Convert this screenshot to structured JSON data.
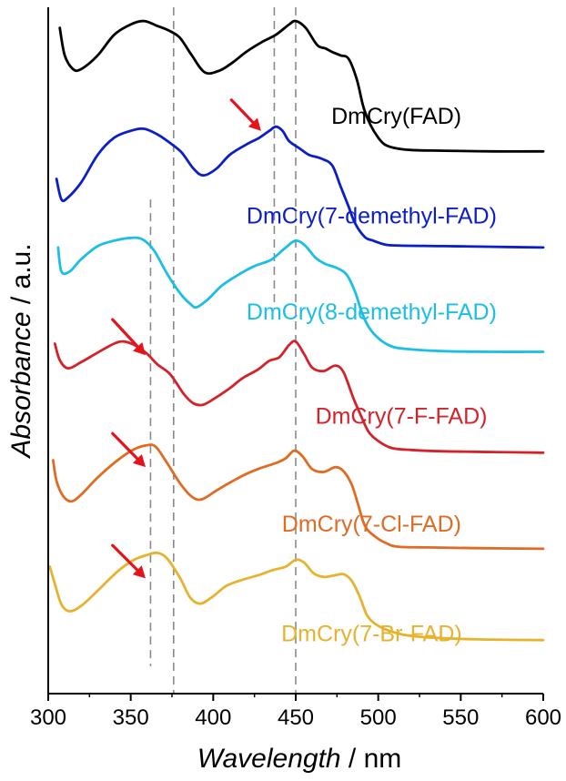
{
  "chart_data": {
    "type": "line",
    "title": "",
    "xlabel_italic": "Wavelength",
    "xlabel_unit": " / nm",
    "ylabel_italic": "Absorbance",
    "ylabel_unit": " / a.u.",
    "xlim": [
      300,
      600
    ],
    "ylim": [
      0,
      100
    ],
    "x_ticks": [
      300,
      350,
      400,
      450,
      500,
      550,
      600
    ],
    "x_tick_labels": [
      "300",
      "350",
      "400",
      "450",
      "500",
      "550",
      "600"
    ],
    "y_ticks_shown": false,
    "legend": "inline labels",
    "stacked_offset_spectra": true,
    "reference_lines_nm": [
      {
        "x": 376,
        "y_range": [
          0,
          100
        ]
      },
      {
        "x": 437,
        "y_range": [
          56,
          100
        ]
      },
      {
        "x": 450,
        "y_range": [
          0,
          100
        ]
      },
      {
        "x": 362,
        "y_range": [
          4,
          72
        ]
      }
    ],
    "arrows": [
      {
        "name": "arrow-7-demethyl",
        "from": [
          411,
          86.5
        ],
        "to": [
          429,
          82
        ]
      },
      {
        "name": "arrow-7-f",
        "from": [
          339,
          54.5
        ],
        "to": [
          359,
          49.3
        ]
      },
      {
        "name": "arrow-7-cl",
        "from": [
          339,
          37.9
        ],
        "to": [
          359,
          33
        ]
      },
      {
        "name": "arrow-7-br",
        "from": [
          339,
          21.6
        ],
        "to": [
          359,
          16.8
        ]
      }
    ],
    "series": [
      {
        "name": "DmCry(FAD)",
        "color": "#000000",
        "label_at": [
          511,
          83
        ],
        "points": [
          [
            307,
            97
          ],
          [
            310,
            93
          ],
          [
            315,
            91
          ],
          [
            320,
            91
          ],
          [
            330,
            93
          ],
          [
            340,
            96
          ],
          [
            350,
            97.5
          ],
          [
            358,
            98
          ],
          [
            366,
            97.3
          ],
          [
            374,
            96.5
          ],
          [
            380,
            95.5
          ],
          [
            387,
            93
          ],
          [
            395,
            90.5
          ],
          [
            404,
            90.8
          ],
          [
            412,
            92
          ],
          [
            420,
            93.5
          ],
          [
            430,
            95
          ],
          [
            438,
            96
          ],
          [
            446,
            97.5
          ],
          [
            450,
            98
          ],
          [
            456,
            97
          ],
          [
            463,
            94.5
          ],
          [
            468,
            94
          ],
          [
            472,
            93.5
          ],
          [
            477,
            93
          ],
          [
            482,
            92.5
          ],
          [
            487,
            89.5
          ],
          [
            491,
            85.5
          ],
          [
            495,
            83
          ],
          [
            500,
            81
          ],
          [
            504,
            80
          ],
          [
            510,
            79.5
          ],
          [
            520,
            79.2
          ],
          [
            540,
            79.1
          ],
          [
            570,
            79
          ],
          [
            600,
            79
          ]
        ]
      },
      {
        "name": "DmCry(7-demethyl-FAD)",
        "color": "#0b1ec7",
        "label_at": [
          496,
          68.5
        ],
        "points": [
          [
            305,
            75
          ],
          [
            308,
            72
          ],
          [
            312,
            72.3
          ],
          [
            320,
            74.5
          ],
          [
            330,
            78.5
          ],
          [
            340,
            81
          ],
          [
            350,
            82
          ],
          [
            358,
            82.3
          ],
          [
            366,
            81.5
          ],
          [
            374,
            80.2
          ],
          [
            381,
            78.8
          ],
          [
            388,
            76.5
          ],
          [
            394,
            75.5
          ],
          [
            402,
            76.5
          ],
          [
            410,
            78.5
          ],
          [
            420,
            80
          ],
          [
            428,
            81
          ],
          [
            434,
            82
          ],
          [
            438,
            82.6
          ],
          [
            442,
            82
          ],
          [
            446,
            80.5
          ],
          [
            452,
            79.5
          ],
          [
            458,
            78.5
          ],
          [
            465,
            78
          ],
          [
            472,
            77
          ],
          [
            477,
            74
          ],
          [
            482,
            71
          ],
          [
            486,
            68.5
          ],
          [
            492,
            66.5
          ],
          [
            497,
            66
          ],
          [
            503,
            65.5
          ],
          [
            510,
            65.3
          ],
          [
            540,
            65.2
          ],
          [
            570,
            65.1
          ],
          [
            600,
            65
          ]
        ]
      },
      {
        "name": "DmCry(8-demethyl-FAD)",
        "color": "#1bbfe4",
        "label_at": [
          496,
          54.5
        ],
        "points": [
          [
            306,
            65
          ],
          [
            308,
            61.5
          ],
          [
            313,
            61.5
          ],
          [
            320,
            63.3
          ],
          [
            330,
            65.2
          ],
          [
            340,
            66
          ],
          [
            350,
            66.4
          ],
          [
            357,
            66.2
          ],
          [
            364,
            64.6
          ],
          [
            372,
            61.2
          ],
          [
            380,
            58.3
          ],
          [
            386,
            56.8
          ],
          [
            390,
            56.3
          ],
          [
            397,
            57.5
          ],
          [
            405,
            59.4
          ],
          [
            415,
            61
          ],
          [
            425,
            62.3
          ],
          [
            435,
            63.2
          ],
          [
            443,
            64.8
          ],
          [
            450,
            66
          ],
          [
            456,
            65.2
          ],
          [
            462,
            63.5
          ],
          [
            468,
            62.6
          ],
          [
            475,
            62
          ],
          [
            481,
            61
          ],
          [
            486,
            58.5
          ],
          [
            490,
            55.6
          ],
          [
            494,
            53.5
          ],
          [
            500,
            51.8
          ],
          [
            508,
            50.6
          ],
          [
            518,
            50.2
          ],
          [
            540,
            49.9
          ],
          [
            570,
            49.8
          ],
          [
            600,
            49.8
          ]
        ]
      },
      {
        "name": "DmCry(7-F-FAD)",
        "color": "#d4222a",
        "label_at": [
          514,
          39.3
        ],
        "points": [
          [
            304,
            51
          ],
          [
            307,
            48.6
          ],
          [
            312,
            47.4
          ],
          [
            320,
            48.3
          ],
          [
            330,
            49.7
          ],
          [
            340,
            51
          ],
          [
            346,
            51.3
          ],
          [
            353,
            50.7
          ],
          [
            360,
            49.5
          ],
          [
            366,
            48
          ],
          [
            374,
            46.5
          ],
          [
            382,
            43.7
          ],
          [
            388,
            42.3
          ],
          [
            394,
            42.1
          ],
          [
            402,
            43.2
          ],
          [
            410,
            44.5
          ],
          [
            418,
            46
          ],
          [
            427,
            47.2
          ],
          [
            434,
            48.5
          ],
          [
            440,
            49
          ],
          [
            446,
            50.8
          ],
          [
            450,
            51.3
          ],
          [
            455,
            49.5
          ],
          [
            460,
            47.5
          ],
          [
            467,
            47
          ],
          [
            474,
            47.8
          ],
          [
            479,
            46.8
          ],
          [
            485,
            43
          ],
          [
            489,
            40.8
          ],
          [
            494,
            38.2
          ],
          [
            500,
            36.8
          ],
          [
            508,
            35.8
          ],
          [
            520,
            35.5
          ],
          [
            540,
            35.3
          ],
          [
            570,
            35.2
          ],
          [
            600,
            35.1
          ]
        ]
      },
      {
        "name": "DmCry(7-Cl-FAD)",
        "color": "#e06b24",
        "label_at": [
          496,
          23.6
        ],
        "points": [
          [
            303,
            34
          ],
          [
            305,
            31
          ],
          [
            309,
            28.8
          ],
          [
            314,
            28
          ],
          [
            320,
            29
          ],
          [
            330,
            31.5
          ],
          [
            342,
            34
          ],
          [
            352,
            35.6
          ],
          [
            360,
            36.2
          ],
          [
            365,
            36
          ],
          [
            371,
            34
          ],
          [
            380,
            30.6
          ],
          [
            387,
            28.7
          ],
          [
            393,
            28.3
          ],
          [
            402,
            29.6
          ],
          [
            412,
            31
          ],
          [
            420,
            32
          ],
          [
            428,
            32.8
          ],
          [
            438,
            33.6
          ],
          [
            444,
            34.3
          ],
          [
            449,
            35.4
          ],
          [
            454,
            34.6
          ],
          [
            460,
            32.7
          ],
          [
            467,
            32.3
          ],
          [
            474,
            33
          ],
          [
            479,
            32.4
          ],
          [
            484,
            30.4
          ],
          [
            488,
            27.4
          ],
          [
            492,
            24.4
          ],
          [
            498,
            22.9
          ],
          [
            505,
            21.9
          ],
          [
            512,
            21.4
          ],
          [
            530,
            21.3
          ],
          [
            560,
            21.2
          ],
          [
            600,
            21.1
          ]
        ]
      },
      {
        "name": "DmCry(7-Br-FAD)",
        "color": "#e6b32e",
        "label_at": [
          496,
          7.6
        ],
        "points": [
          [
            301,
            18.5
          ],
          [
            304,
            16
          ],
          [
            308,
            13
          ],
          [
            313,
            12
          ],
          [
            320,
            12.8
          ],
          [
            330,
            15
          ],
          [
            342,
            17.8
          ],
          [
            352,
            19.5
          ],
          [
            360,
            20.2
          ],
          [
            366,
            20.5
          ],
          [
            372,
            19.7
          ],
          [
            380,
            16.8
          ],
          [
            386,
            14
          ],
          [
            392,
            13.1
          ],
          [
            399,
            14
          ],
          [
            408,
            15.7
          ],
          [
            418,
            16.6
          ],
          [
            428,
            17.3
          ],
          [
            436,
            18
          ],
          [
            444,
            18.5
          ],
          [
            450,
            19.5
          ],
          [
            455,
            19.1
          ],
          [
            461,
            17.5
          ],
          [
            467,
            17
          ],
          [
            473,
            17.2
          ],
          [
            479,
            17.4
          ],
          [
            484,
            16.4
          ],
          [
            489,
            14
          ],
          [
            493,
            11.5
          ],
          [
            498,
            10.2
          ],
          [
            506,
            9.2
          ],
          [
            515,
            8.6
          ],
          [
            530,
            8.2
          ],
          [
            560,
            7.9
          ],
          [
            600,
            7.8
          ]
        ]
      }
    ]
  }
}
